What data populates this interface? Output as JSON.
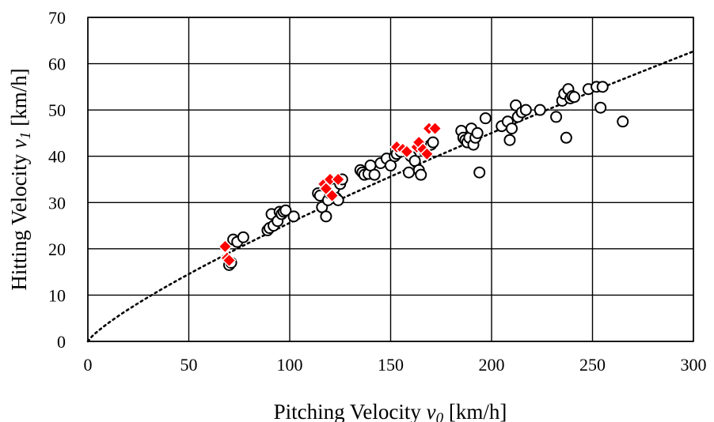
{
  "chart_data": {
    "type": "scatter",
    "xlabel": "Pitching Velocity",
    "xlabel_var": "v",
    "xlabel_sub": "0",
    "xlabel_unit": "[km/h]",
    "ylabel": "Hitting Velocity",
    "ylabel_var": "v",
    "ylabel_sub": "1",
    "ylabel_unit": "[km/h]",
    "xlim": [
      0,
      300
    ],
    "ylim": [
      0,
      70
    ],
    "xticks": [
      0,
      50,
      100,
      150,
      200,
      250,
      300
    ],
    "yticks": [
      0,
      10,
      20,
      30,
      40,
      50,
      60,
      70
    ],
    "grid": true,
    "legend": "none",
    "series": [
      {
        "marker": "circle",
        "color": "#000000",
        "points": [
          [
            70,
            16.5
          ],
          [
            71,
            17
          ],
          [
            72,
            22
          ],
          [
            74,
            21.5
          ],
          [
            77,
            22.5
          ],
          [
            89,
            24
          ],
          [
            90,
            24.5
          ],
          [
            91,
            27.5
          ],
          [
            92,
            25
          ],
          [
            94,
            26
          ],
          [
            95,
            28
          ],
          [
            96,
            27.5
          ],
          [
            97,
            28
          ],
          [
            98,
            28.3
          ],
          [
            102,
            27
          ],
          [
            114,
            32
          ],
          [
            115,
            31.5
          ],
          [
            116,
            29
          ],
          [
            118,
            27
          ],
          [
            119,
            30.5
          ],
          [
            120,
            32
          ],
          [
            122,
            33
          ],
          [
            123,
            31
          ],
          [
            124,
            30.5
          ],
          [
            125,
            34
          ],
          [
            126,
            35
          ],
          [
            135,
            37
          ],
          [
            136,
            36.5
          ],
          [
            137,
            36
          ],
          [
            139,
            36.2
          ],
          [
            140,
            38
          ],
          [
            142,
            36
          ],
          [
            145,
            38.5
          ],
          [
            148,
            39.5
          ],
          [
            150,
            38
          ],
          [
            152,
            40
          ],
          [
            153,
            40.5
          ],
          [
            155,
            41
          ],
          [
            159,
            36.5
          ],
          [
            160,
            40
          ],
          [
            162,
            39
          ],
          [
            164,
            37
          ],
          [
            165,
            36
          ],
          [
            167,
            41
          ],
          [
            168,
            42
          ],
          [
            170,
            42.5
          ],
          [
            171,
            43
          ],
          [
            185,
            45.5
          ],
          [
            186,
            44
          ],
          [
            187,
            43.5
          ],
          [
            188,
            43
          ],
          [
            189,
            44
          ],
          [
            190,
            46
          ],
          [
            191,
            42.5
          ],
          [
            192,
            44
          ],
          [
            193,
            45
          ],
          [
            194,
            36.5
          ],
          [
            197,
            48.2
          ],
          [
            205,
            46.5
          ],
          [
            208,
            47.5
          ],
          [
            209,
            43.5
          ],
          [
            210,
            46
          ],
          [
            212,
            51
          ],
          [
            213,
            48.5
          ],
          [
            215,
            49.5
          ],
          [
            217,
            50
          ],
          [
            224,
            50
          ],
          [
            232,
            48.5
          ],
          [
            235,
            52
          ],
          [
            236,
            53.5
          ],
          [
            237,
            44
          ],
          [
            238,
            54.5
          ],
          [
            239,
            52.5
          ],
          [
            240,
            53
          ],
          [
            241,
            52.8
          ],
          [
            248,
            54.5
          ],
          [
            252,
            55
          ],
          [
            254,
            50.5
          ],
          [
            255,
            55
          ],
          [
            265,
            47.5
          ]
        ]
      },
      {
        "marker": "diamond",
        "color": "#ff0000",
        "points": [
          [
            68,
            20.5
          ],
          [
            69,
            18
          ],
          [
            70,
            17.5
          ],
          [
            117,
            34
          ],
          [
            118,
            33
          ],
          [
            120,
            35
          ],
          [
            121,
            31.5
          ],
          [
            124,
            35
          ],
          [
            153,
            42
          ],
          [
            156,
            41.5
          ],
          [
            158,
            41
          ],
          [
            163,
            42
          ],
          [
            164,
            43
          ],
          [
            166,
            41.5
          ],
          [
            168,
            40.5
          ],
          [
            169,
            46
          ],
          [
            172,
            46
          ]
        ]
      }
    ],
    "trendline": {
      "style": "dotted",
      "type": "power",
      "a": 0.6,
      "b": 0.815
    }
  }
}
